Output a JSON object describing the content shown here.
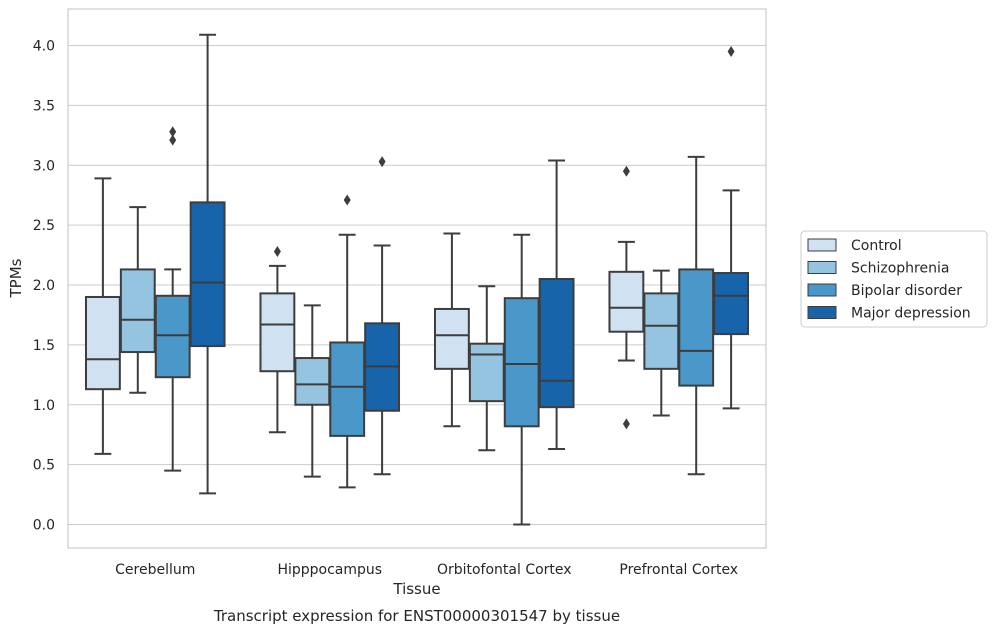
{
  "chart_data": {
    "type": "box",
    "caption": "Transcript expression for ENST00000301547 by tissue",
    "xlabel": "Tissue",
    "ylabel": "TPMs",
    "ylim": [
      -0.2,
      4.3
    ],
    "yticks": [
      "0.0",
      "0.5",
      "1.0",
      "1.5",
      "2.0",
      "2.5",
      "3.0",
      "3.5",
      "4.0"
    ],
    "categories": [
      "Cerebellum",
      "Hipppocampus",
      "Orbitofontal Cortex",
      "Prefrontal Cortex"
    ],
    "grid": true,
    "legend_position": "right",
    "series": [
      {
        "name": "Control",
        "color": "#d0e1f2",
        "boxes": [
          {
            "whisker_low": 0.59,
            "q1": 1.13,
            "median": 1.38,
            "q3": 1.9,
            "whisker_high": 2.89,
            "outliers": []
          },
          {
            "whisker_low": 0.77,
            "q1": 1.28,
            "median": 1.67,
            "q3": 1.93,
            "whisker_high": 2.16,
            "outliers": [
              2.28
            ]
          },
          {
            "whisker_low": 0.82,
            "q1": 1.3,
            "median": 1.58,
            "q3": 1.8,
            "whisker_high": 2.43,
            "outliers": []
          },
          {
            "whisker_low": 1.37,
            "q1": 1.61,
            "median": 1.81,
            "q3": 2.11,
            "whisker_high": 2.36,
            "outliers": [
              0.84,
              2.95
            ]
          }
        ]
      },
      {
        "name": "Schizophrenia",
        "color": "#94c4df",
        "boxes": [
          {
            "whisker_low": 1.1,
            "q1": 1.44,
            "median": 1.71,
            "q3": 2.13,
            "whisker_high": 2.65,
            "outliers": []
          },
          {
            "whisker_low": 0.4,
            "q1": 1.0,
            "median": 1.17,
            "q3": 1.39,
            "whisker_high": 1.83,
            "outliers": []
          },
          {
            "whisker_low": 0.62,
            "q1": 1.03,
            "median": 1.42,
            "q3": 1.51,
            "whisker_high": 1.99,
            "outliers": []
          },
          {
            "whisker_low": 0.91,
            "q1": 1.3,
            "median": 1.66,
            "q3": 1.93,
            "whisker_high": 2.12,
            "outliers": []
          }
        ]
      },
      {
        "name": "Bipolar disorder",
        "color": "#4a98c9",
        "boxes": [
          {
            "whisker_low": 0.45,
            "q1": 1.23,
            "median": 1.58,
            "q3": 1.91,
            "whisker_high": 2.13,
            "outliers": [
              3.21,
              3.28
            ]
          },
          {
            "whisker_low": 0.31,
            "q1": 0.74,
            "median": 1.15,
            "q3": 1.52,
            "whisker_high": 2.42,
            "outliers": [
              2.71
            ]
          },
          {
            "whisker_low": 0.0,
            "q1": 0.82,
            "median": 1.34,
            "q3": 1.89,
            "whisker_high": 2.42,
            "outliers": []
          },
          {
            "whisker_low": 0.42,
            "q1": 1.16,
            "median": 1.45,
            "q3": 2.13,
            "whisker_high": 3.07,
            "outliers": []
          }
        ]
      },
      {
        "name": "Major depression",
        "color": "#1764ab",
        "boxes": [
          {
            "whisker_low": 0.26,
            "q1": 1.49,
            "median": 2.02,
            "q3": 2.69,
            "whisker_high": 4.09,
            "outliers": []
          },
          {
            "whisker_low": 0.42,
            "q1": 0.95,
            "median": 1.32,
            "q3": 1.68,
            "whisker_high": 2.33,
            "outliers": [
              3.03
            ]
          },
          {
            "whisker_low": 0.63,
            "q1": 0.98,
            "median": 1.2,
            "q3": 2.05,
            "whisker_high": 3.04,
            "outliers": []
          },
          {
            "whisker_low": 0.97,
            "q1": 1.59,
            "median": 1.91,
            "q3": 2.1,
            "whisker_high": 2.79,
            "outliers": [
              3.95
            ]
          }
        ]
      }
    ]
  }
}
